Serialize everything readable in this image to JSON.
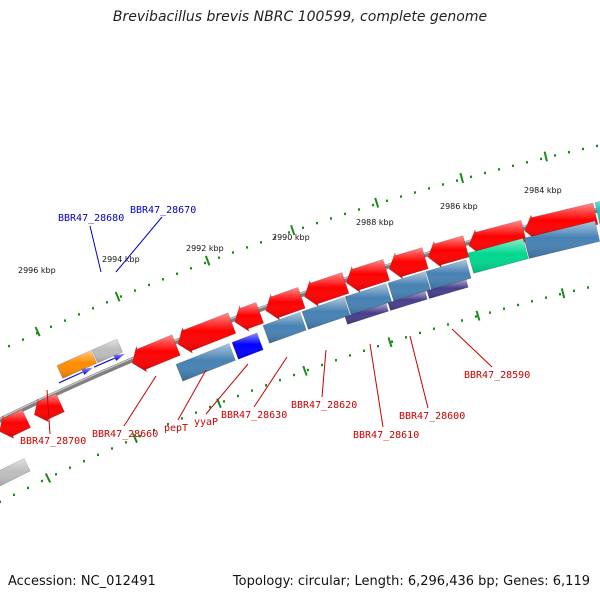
{
  "title": "Brevibacillus brevis NBRC 100599, complete genome",
  "footer": {
    "accession": "Accession: NC_012491",
    "stats": "Topology: circular; Length: 6,296,436 bp; Genes: 6,119"
  },
  "colors": {
    "backbone": "#808080",
    "cds": "#ff0000",
    "gene": "#4682b4",
    "blue_cds": "#0000ff",
    "orange": "#ff8c00",
    "green": "#00d890",
    "purple": "#483d8b",
    "gray": "#bdbdbd",
    "tick": "#1a8a1a",
    "label_red": "#cc0000",
    "label_blue": "#0000cc"
  },
  "axis": {
    "ticks": [
      {
        "label": "2996 kbp"
      },
      {
        "label": "2994 kbp"
      },
      {
        "label": "2992 kbp"
      },
      {
        "label": "2990 kbp"
      },
      {
        "label": "2988 kbp"
      },
      {
        "label": "2986 kbp"
      },
      {
        "label": "2984 kbp"
      }
    ]
  },
  "labels": [
    {
      "text": "BBR47_28680",
      "color": "blue"
    },
    {
      "text": "BBR47_28670",
      "color": "blue"
    },
    {
      "text": "BBR47_28700",
      "color": "red"
    },
    {
      "text": "BBR47_28660",
      "color": "red"
    },
    {
      "text": "pepT",
      "color": "red"
    },
    {
      "text": "yyaP",
      "color": "red"
    },
    {
      "text": "BBR47_28630",
      "color": "red"
    },
    {
      "text": "BBR47_28620",
      "color": "red"
    },
    {
      "text": "BBR47_28610",
      "color": "red"
    },
    {
      "text": "BBR47_28600",
      "color": "red"
    },
    {
      "text": "BBR47_28590",
      "color": "red"
    }
  ]
}
